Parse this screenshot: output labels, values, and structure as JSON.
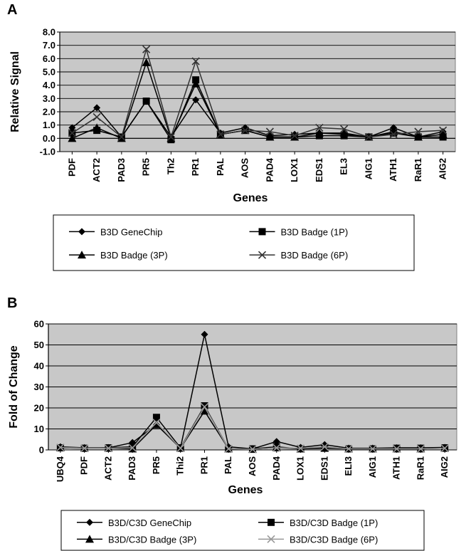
{
  "chart_data": [
    {
      "type": "line",
      "panel_label": "A",
      "xlabel": "Genes",
      "ylabel": "Relative Signal",
      "ylim": [
        -1.0,
        8.0
      ],
      "ytick_step": 1.0,
      "ytick_decimals": 1,
      "grid": true,
      "legend_position": "bottom",
      "categories": [
        "PDF",
        "ACT2",
        "PAD3",
        "PR5",
        "Th2",
        "PR1",
        "PAL",
        "AOS",
        "PAD4",
        "LOX1",
        "EDS1",
        "EL3",
        "AIG1",
        "ATH1",
        "RaR1",
        "AIG2"
      ],
      "series": [
        {
          "name": "B3D GeneChip",
          "marker": "diamond",
          "color": "#000000",
          "values": [
            0.8,
            2.3,
            0.1,
            2.8,
            0.1,
            2.9,
            0.4,
            0.8,
            0.2,
            0.3,
            0.4,
            0.3,
            0.1,
            0.8,
            0.1,
            0.5
          ]
        },
        {
          "name": "B3D Badge (1P)",
          "marker": "square",
          "color": "#000000",
          "values": [
            0.4,
            0.6,
            0.1,
            2.8,
            -0.1,
            4.4,
            0.3,
            0.6,
            0.1,
            0.1,
            0.2,
            0.2,
            0.1,
            0.4,
            0.1,
            0.1
          ]
        },
        {
          "name": "B3D Badge (3P)",
          "marker": "triangle",
          "color": "#000000",
          "values": [
            0.0,
            0.8,
            0.0,
            5.7,
            0.0,
            4.1,
            0.3,
            0.6,
            0.1,
            0.1,
            0.4,
            0.4,
            0.1,
            0.5,
            0.1,
            0.3
          ]
        },
        {
          "name": "B3D Badge (6P)",
          "marker": "x",
          "color": "#333333",
          "values": [
            0.4,
            1.6,
            0.1,
            6.7,
            0.1,
            5.8,
            0.3,
            0.6,
            0.5,
            0.2,
            0.8,
            0.7,
            0.1,
            0.3,
            0.5,
            0.6
          ]
        }
      ]
    },
    {
      "type": "line",
      "panel_label": "B",
      "xlabel": "Genes",
      "ylabel": "Fold of Change",
      "ylim": [
        0,
        60
      ],
      "ytick_step": 10,
      "ytick_decimals": 0,
      "grid": true,
      "legend_position": "bottom",
      "categories": [
        "UBQ4",
        "PDF",
        "ACT2",
        "PAD3",
        "PR5",
        "Thi2",
        "PR1",
        "PAL",
        "AOS",
        "PAD4",
        "LOX1",
        "EDS1",
        "ELI3",
        "AIG1",
        "ATH1",
        "RaR1",
        "AIG2"
      ],
      "series": [
        {
          "name": "B3D/C3D GeneChip",
          "marker": "diamond",
          "color": "#000000",
          "values": [
            1.5,
            1.0,
            1.0,
            3.5,
            12.0,
            1.0,
            55.0,
            1.5,
            0.5,
            4.0,
            1.2,
            2.5,
            0.8,
            0.8,
            1.0,
            1.0,
            1.2
          ]
        },
        {
          "name": "B3D/C3D Badge (1P)",
          "marker": "square",
          "color": "#000000",
          "values": [
            1.0,
            0.8,
            1.0,
            1.5,
            15.5,
            1.0,
            21.0,
            0.5,
            0.5,
            1.5,
            0.5,
            1.0,
            0.5,
            0.5,
            0.8,
            0.8,
            1.0
          ]
        },
        {
          "name": "B3D/C3D Badge (3P)",
          "marker": "triangle",
          "color": "#000000",
          "values": [
            1.0,
            0.8,
            0.8,
            0.5,
            12.0,
            0.8,
            18.5,
            0.5,
            0.3,
            1.0,
            0.5,
            0.8,
            0.5,
            0.5,
            0.5,
            0.5,
            0.8
          ]
        },
        {
          "name": "B3D/C3D Badge (6P)",
          "marker": "x",
          "color": "#999999",
          "values": [
            1.2,
            0.8,
            0.8,
            1.0,
            13.0,
            0.8,
            20.5,
            0.5,
            0.3,
            1.0,
            0.8,
            1.5,
            0.5,
            0.5,
            0.5,
            0.5,
            0.8
          ]
        }
      ]
    }
  ]
}
